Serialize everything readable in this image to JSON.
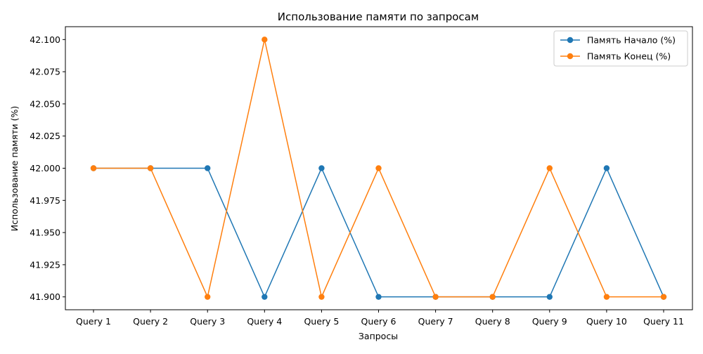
{
  "chart_data": {
    "type": "line",
    "title": "Использование памяти по запросам",
    "xlabel": "Запросы",
    "ylabel": "Использование памяти (%)",
    "categories": [
      "Query 1",
      "Query 2",
      "Query 3",
      "Query 4",
      "Query 5",
      "Query 6",
      "Query 7",
      "Query 8",
      "Query 9",
      "Query 10",
      "Query 11"
    ],
    "ylim": [
      41.89,
      42.11
    ],
    "yticks": [
      "41.900",
      "41.925",
      "41.950",
      "41.975",
      "42.000",
      "42.025",
      "42.050",
      "42.075",
      "42.100"
    ],
    "grid": false,
    "legend_position": "top-right",
    "series": [
      {
        "name": "Память Начало (%)",
        "color": "#1f77b4",
        "values": [
          42.0,
          42.0,
          42.0,
          41.9,
          42.0,
          41.9,
          41.9,
          41.9,
          41.9,
          42.0,
          41.9
        ]
      },
      {
        "name": "Память Конец (%)",
        "color": "#ff7f0e",
        "values": [
          42.0,
          42.0,
          41.9,
          42.1,
          41.9,
          42.0,
          41.9,
          41.9,
          42.0,
          41.9,
          41.9
        ]
      }
    ]
  }
}
